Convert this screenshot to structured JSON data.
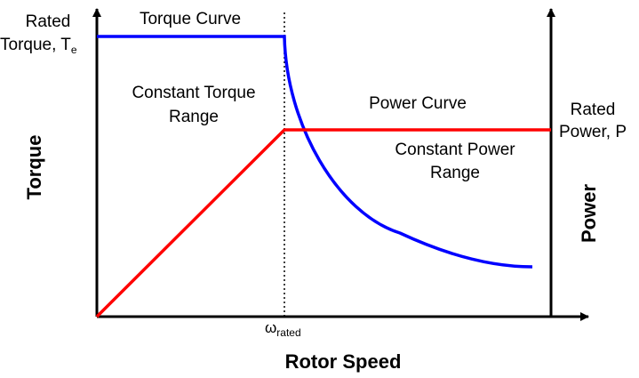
{
  "diagram": {
    "x_axis_title": "Rotor Speed",
    "left_axis_title": "Torque",
    "right_axis_title": "Power",
    "rated_torque": {
      "line1": "Rated",
      "line2": "Torque, T",
      "subscript": "e"
    },
    "rated_power": {
      "line1": "Rated",
      "line2": "Power, P"
    },
    "rated_speed": {
      "symbol": "ω",
      "subscript": "rated"
    },
    "torque_curve_label": "Torque Curve",
    "power_curve_label": "Power Curve",
    "constant_torque_range": {
      "line1": "Constant Torque",
      "line2": "Range"
    },
    "constant_power_range": {
      "line1": "Constant Power",
      "line2": "Range"
    },
    "colors": {
      "torque_curve": "#0000ff",
      "power_curve": "#ff0000",
      "axes": "#000000",
      "rated_speed_marker": "#000000"
    }
  }
}
